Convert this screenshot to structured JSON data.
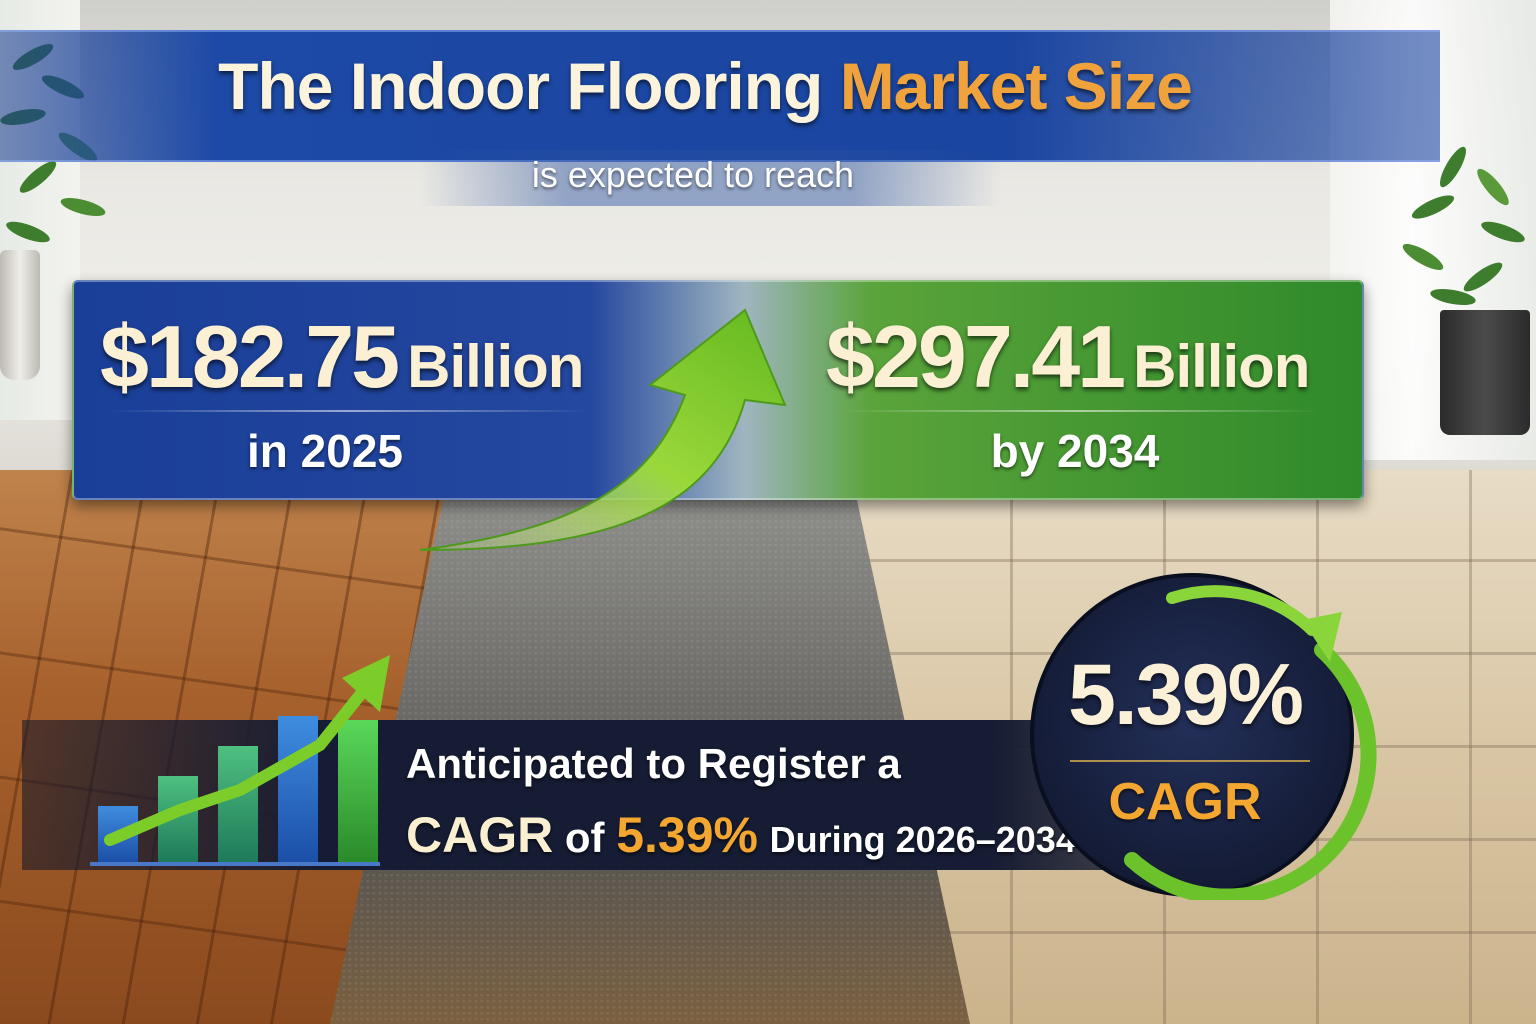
{
  "header": {
    "title_main": "The Indoor Flooring",
    "title_accent": "Market Size",
    "subtitle": "is expected to reach"
  },
  "values": {
    "start": {
      "amount": "$182.75",
      "unit": "Billion",
      "period": "in 2025"
    },
    "end": {
      "amount": "$297.41",
      "unit": "Billion",
      "period": "by 2034"
    }
  },
  "cagr_banner": {
    "line1": "Anticipated to Register a",
    "cagr_word": "CAGR",
    "of_word": "of",
    "rate": "5.39%",
    "period": "During 2026–2034"
  },
  "cagr_badge": {
    "rate": "5.39%",
    "label": "CAGR"
  },
  "colors": {
    "accent_orange": "#f0a33c",
    "panel_blue": "#1a3f98",
    "panel_green": "#2f8a2a",
    "arrow_green": "#7ccc2a"
  }
}
